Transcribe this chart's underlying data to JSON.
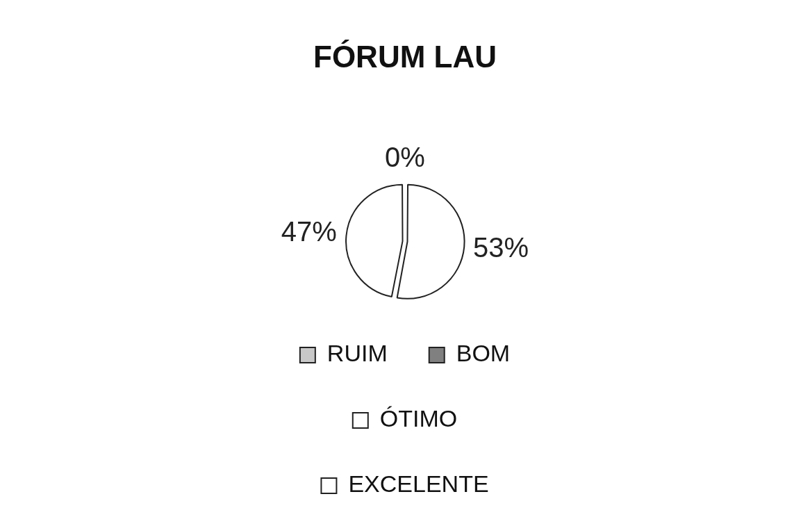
{
  "chart_data": {
    "type": "pie",
    "title": "FÓRUM LAU",
    "categories": [
      "RUIM",
      "BOM",
      "ÓTIMO",
      "EXCELENTE"
    ],
    "values": [
      0,
      0,
      53,
      47
    ],
    "colors": [
      "#c8c8c8",
      "#808080",
      "#ffffff",
      "#ffffff"
    ],
    "value_labels": [
      "0%",
      null,
      "53%",
      "47%"
    ],
    "legend": "bottom"
  }
}
